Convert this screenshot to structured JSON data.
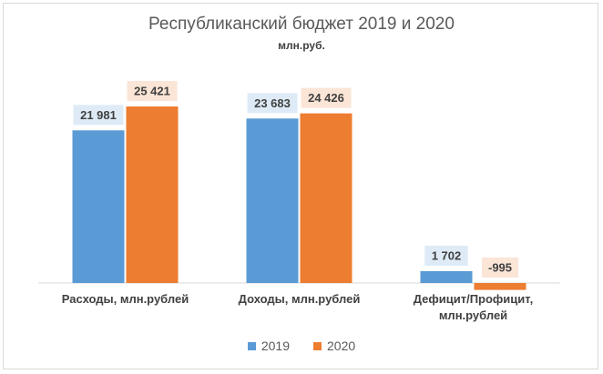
{
  "chart_data": {
    "type": "bar",
    "title": "Республиканский бюджет 2019 и 2020",
    "subtitle": "млн.руб.",
    "categories": [
      [
        "Расходы, млн.рублей"
      ],
      [
        "Доходы, млн.рублей"
      ],
      [
        "Дефицит/Профицит,",
        "млн.рублей"
      ]
    ],
    "series": [
      {
        "name": "2019",
        "color": "#5b9bd5",
        "label_bg": "#deebf7",
        "values": [
          21981,
          23683,
          1702
        ],
        "labels": [
          "21 981",
          "23 683",
          "1 702"
        ]
      },
      {
        "name": "2020",
        "color": "#ed7d31",
        "label_bg": "#fbe5d6",
        "values": [
          25421,
          24426,
          -995
        ],
        "labels": [
          "25 421",
          "24 426",
          "-995"
        ]
      }
    ],
    "legend_position": "bottom",
    "grid": false
  }
}
